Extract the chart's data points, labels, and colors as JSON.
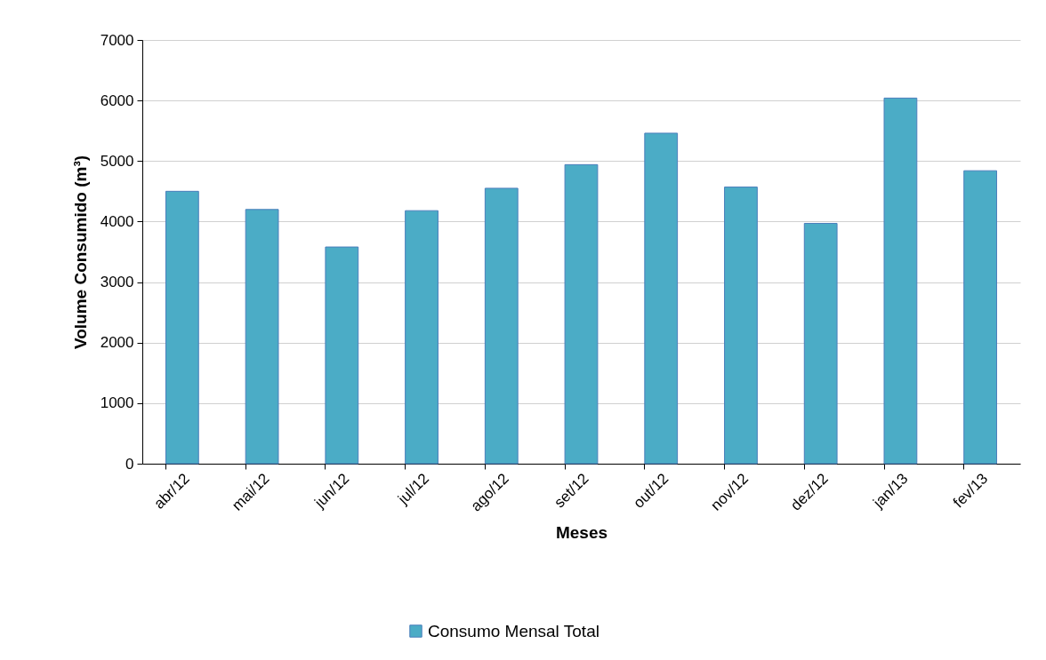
{
  "chart_data": {
    "type": "bar",
    "xlabel": "Meses",
    "ylabel": "Volume Consumido (m³)",
    "categories": [
      "abr/12",
      "mai/12",
      "jun/12",
      "jul/12",
      "ago/12",
      "set/12",
      "out/12",
      "nov/12",
      "dez/12",
      "jan/13",
      "fev/13"
    ],
    "series": [
      {
        "name": "Consumo Mensal Total",
        "color": "#4bacc6",
        "values": [
          4500,
          4200,
          3580,
          4180,
          4550,
          4940,
          5460,
          4570,
          3970,
          6040,
          4840
        ]
      }
    ],
    "ylim": [
      0,
      7000
    ],
    "yticks": [
      0,
      1000,
      2000,
      3000,
      4000,
      5000,
      6000,
      7000
    ],
    "grid": "y",
    "legend": "bottom"
  }
}
